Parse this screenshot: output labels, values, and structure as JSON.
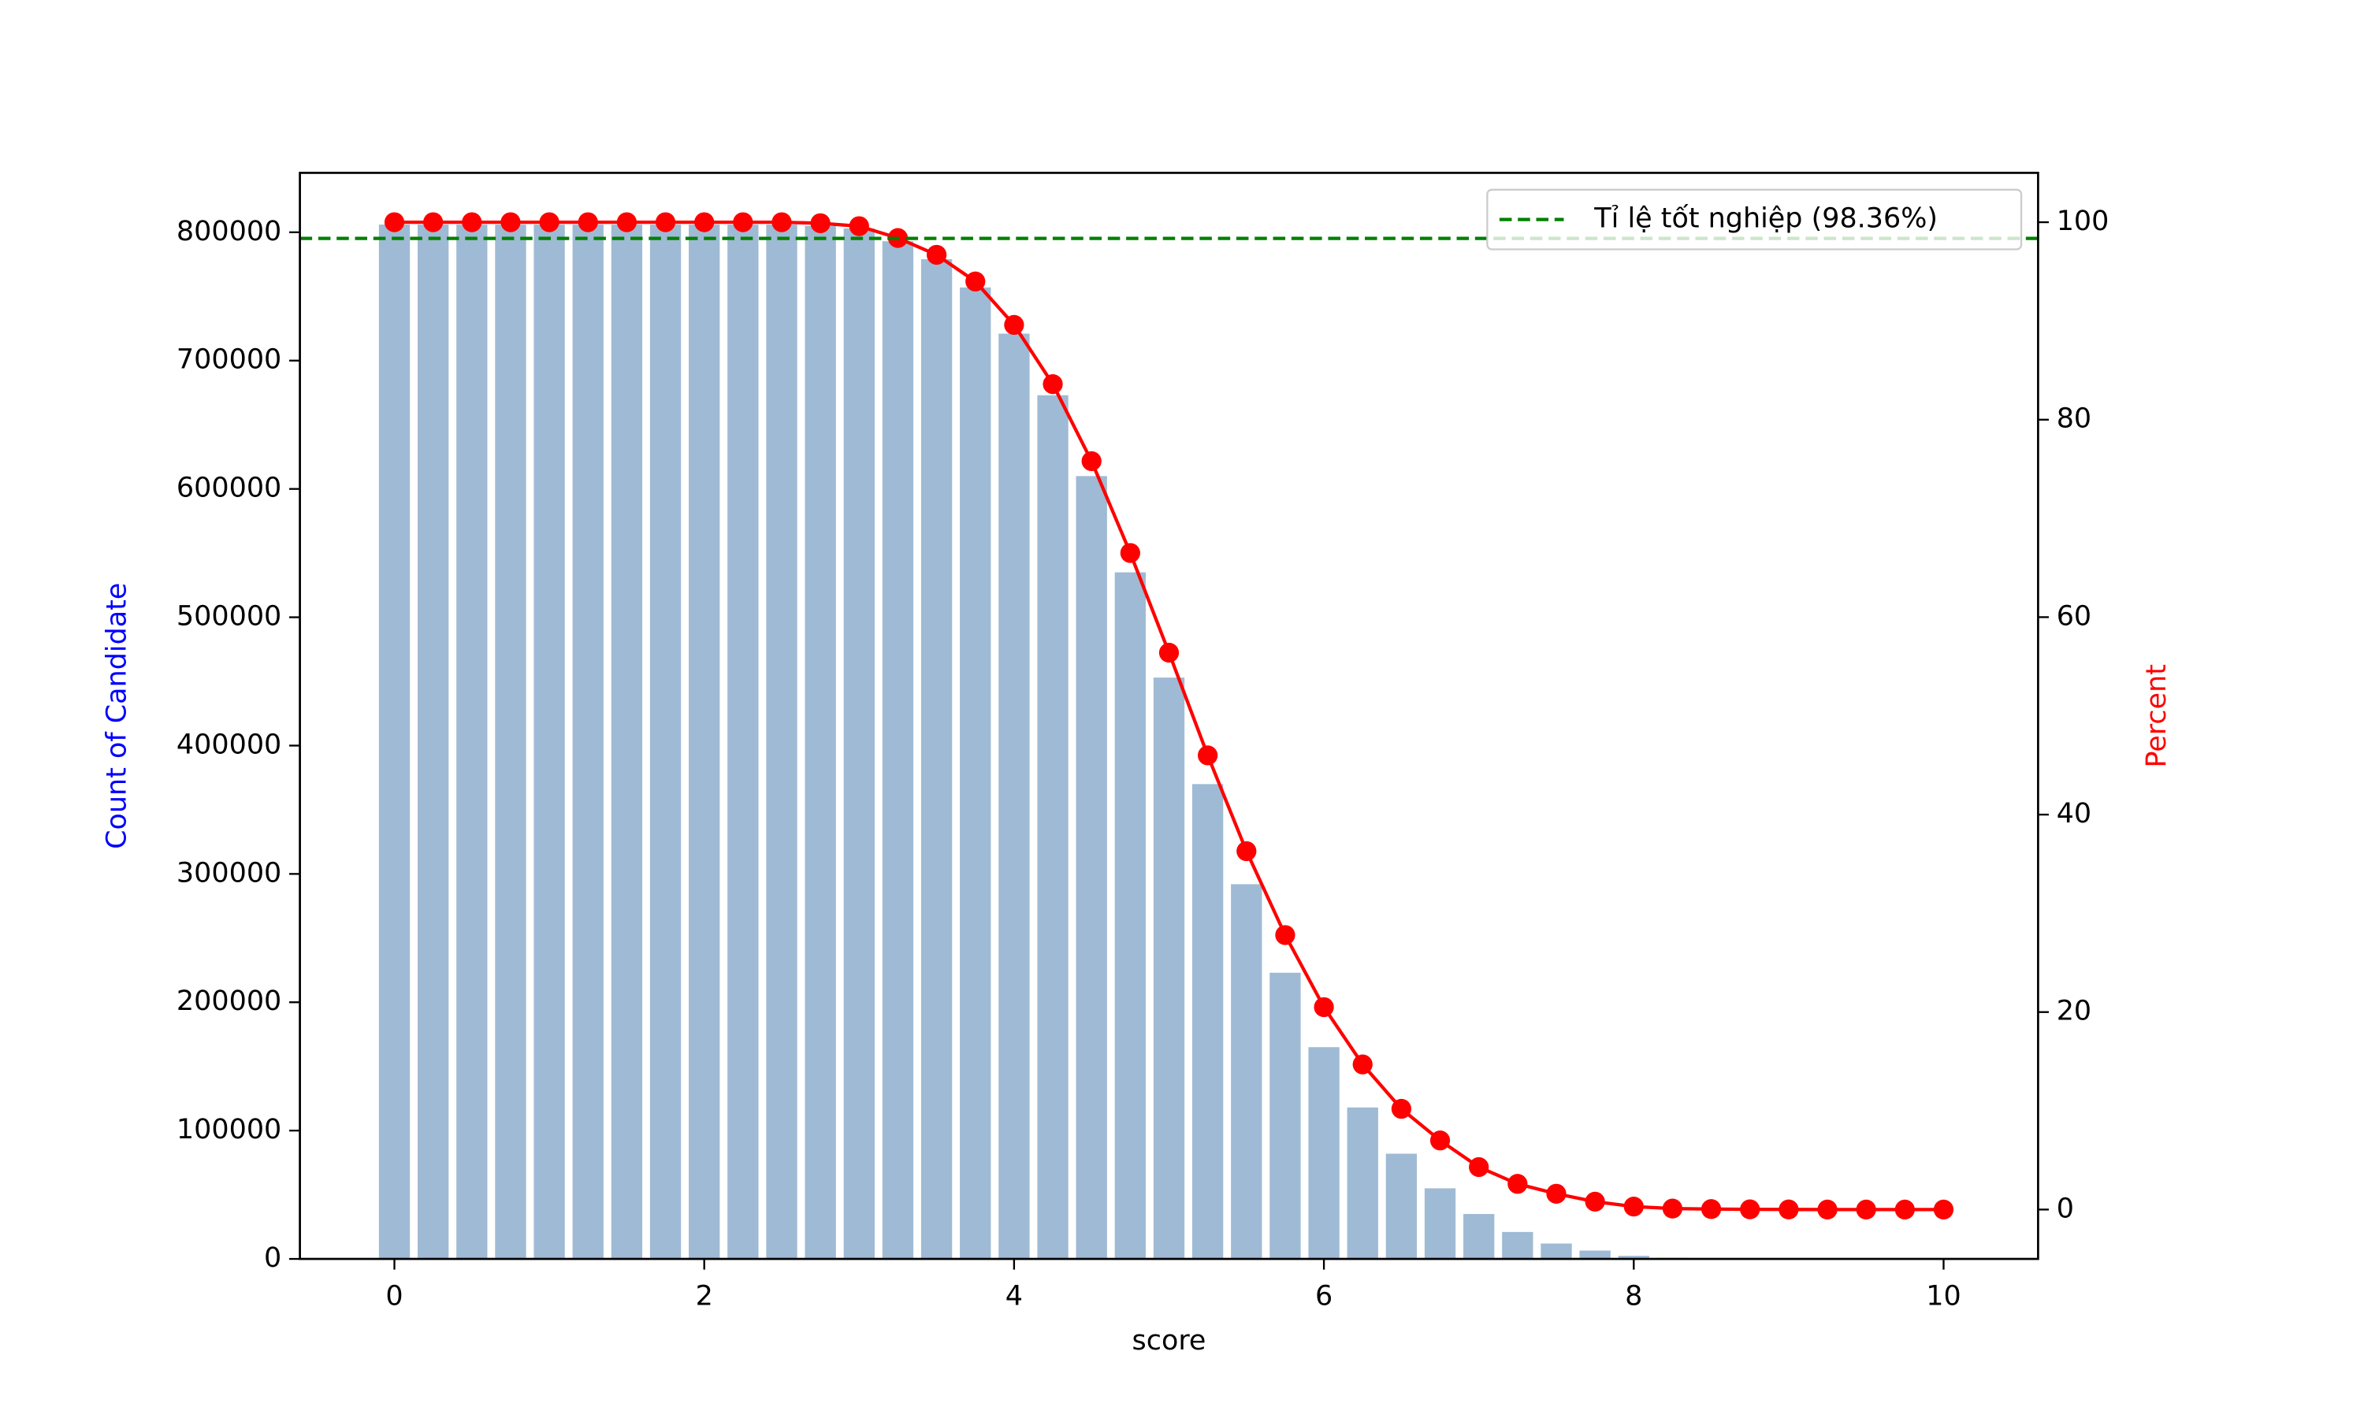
{
  "chart_data": {
    "type": "bar-line",
    "x": [
      0,
      0.25,
      0.5,
      0.75,
      1,
      1.25,
      1.5,
      1.75,
      2,
      2.25,
      2.5,
      2.75,
      3,
      3.25,
      3.5,
      3.75,
      4,
      4.25,
      4.5,
      4.75,
      5,
      5.25,
      5.5,
      5.75,
      6,
      6.25,
      6.5,
      6.75,
      7,
      7.25,
      7.5,
      7.75,
      8,
      8.25,
      8.5,
      8.75,
      9,
      9.25,
      9.5,
      9.75,
      10
    ],
    "series": [
      {
        "type": "bar",
        "color": "#9fbad4",
        "axis": "y",
        "values": [
          806000,
          806000,
          806000,
          806000,
          806000,
          806000,
          806000,
          806000,
          806000,
          806000,
          806000,
          805000,
          803000,
          793000,
          779000,
          757000,
          721000,
          673000,
          610000,
          535000,
          453000,
          370000,
          292000,
          223000,
          165000,
          118000,
          82000,
          55000,
          35000,
          21000,
          12000,
          6500,
          2400,
          800,
          400,
          150,
          60,
          20,
          5,
          1,
          0
        ]
      },
      {
        "type": "line",
        "color": "red",
        "axis": "y2",
        "values": [
          100,
          100,
          100,
          100,
          100,
          100,
          100,
          100,
          100,
          100,
          100,
          99.9,
          99.6,
          98.4,
          96.7,
          94.0,
          89.6,
          83.6,
          75.8,
          66.5,
          56.4,
          46.0,
          36.3,
          27.8,
          20.5,
          14.7,
          10.2,
          7.0,
          4.3,
          2.6,
          1.6,
          0.8,
          0.3,
          0.1,
          0.05,
          0.02,
          0.01,
          0,
          0,
          0,
          0
        ]
      }
    ],
    "hlines": [
      {
        "label": "Tỉ lệ tốt nghiệp (98.36%)",
        "value": 98.36,
        "axis": "y2",
        "color": "green"
      }
    ],
    "xlabel": "score",
    "ylabel": "Count of Candidate",
    "ylabel_color": "blue",
    "y2label": "Percent",
    "y2label_color": "red",
    "xlim": [
      -0.61,
      10.61
    ],
    "xticks": [
      0,
      2,
      4,
      6,
      8,
      10
    ],
    "ylim": [
      0,
      846300
    ],
    "yticks": [
      0,
      100000,
      200000,
      300000,
      400000,
      500000,
      600000,
      700000,
      800000
    ],
    "y2lim": [
      -5,
      105
    ],
    "y2ticks": [
      0,
      20,
      40,
      60,
      80,
      100
    ],
    "legend": "upper right"
  }
}
